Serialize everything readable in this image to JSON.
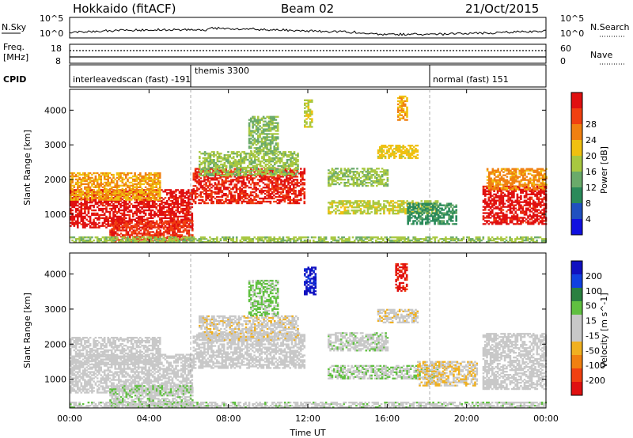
{
  "header": {
    "station": "Hokkaido (fitACF)",
    "beam": "Beam 02",
    "date": "21/Oct/2015"
  },
  "noise_panel": {
    "left_label": "N.Sky",
    "right_label": "N.Search",
    "left_ticks": [
      "10^5",
      "10^0"
    ],
    "right_ticks": [
      "10^5",
      "10^0"
    ]
  },
  "freq_panel": {
    "left_label_line1": "Freq.",
    "left_label_line2": "[MHz]",
    "left_ticks": [
      "18",
      "8"
    ],
    "right_label": "Nave",
    "right_ticks": [
      "60",
      "0"
    ]
  },
  "cpid": {
    "label": "CPID",
    "segments": [
      {
        "name": "interleavedscan (fast) -191",
        "start_hour": 0,
        "end_hour": 6
      },
      {
        "name": "themis 3300",
        "start_hour": 6,
        "end_hour": 18
      },
      {
        "name": "normal (fast) 151",
        "start_hour": 18,
        "end_hour": 24
      }
    ]
  },
  "colors": {
    "power_scale": [
      "#1010e0",
      "#2050c0",
      "#2a8a5a",
      "#6aaa6a",
      "#a8c840",
      "#f0c010",
      "#f08010",
      "#f04010",
      "#e01010"
    ],
    "velocity_scale": [
      "#1010c0",
      "#1040e0",
      "#2a8040",
      "#60c040",
      "#c8c8c8",
      "#c8c8c8",
      "#f0b020",
      "#f08010",
      "#f04010",
      "#e01010"
    ]
  },
  "chart_data": [
    {
      "type": "heatmap",
      "panel": "power",
      "ylabel": "Slant Range [km]",
      "xlabel": "Time UT",
      "x_ticks": [
        "00:00",
        "04:00",
        "08:00",
        "12:00",
        "16:00",
        "20:00",
        "00:00"
      ],
      "xlim_hours": [
        0,
        24
      ],
      "ylim_km": [
        180,
        4600
      ],
      "y_ticks": [
        1000,
        2000,
        3000,
        4000
      ],
      "colorbar": {
        "label": "Power [dB]",
        "ticks": [
          "4",
          "8",
          "12",
          "16",
          "20",
          "24",
          "28"
        ],
        "range": [
          0,
          30
        ]
      },
      "regions": [
        {
          "t0": 0,
          "t1": 6.2,
          "r0": 600,
          "r1": 1700,
          "value": 28
        },
        {
          "t0": 0,
          "t1": 4.5,
          "r0": 1400,
          "r1": 2200,
          "value": 20
        },
        {
          "t0": 2,
          "t1": 6.2,
          "r0": 200,
          "r1": 800,
          "value": 26
        },
        {
          "t0": 6.2,
          "t1": 11.8,
          "r0": 1300,
          "r1": 2300,
          "value": 27
        },
        {
          "t0": 6.5,
          "t1": 11.5,
          "r0": 2100,
          "r1": 2800,
          "value": 14
        },
        {
          "t0": 9,
          "t1": 10.5,
          "r0": 2800,
          "r1": 3800,
          "value": 13
        },
        {
          "t0": 11.8,
          "t1": 12.2,
          "r0": 3500,
          "r1": 4300,
          "value": 16
        },
        {
          "t0": 13,
          "t1": 18.5,
          "r0": 1000,
          "r1": 1400,
          "value": 16
        },
        {
          "t0": 13,
          "t1": 16.0,
          "r0": 1800,
          "r1": 2300,
          "value": 14
        },
        {
          "t0": 15.5,
          "t1": 17.5,
          "r0": 2600,
          "r1": 3000,
          "value": 18
        },
        {
          "t0": 16.5,
          "t1": 17.0,
          "r0": 3700,
          "r1": 4400,
          "value": 20
        },
        {
          "t0": 17.0,
          "t1": 19.5,
          "r0": 700,
          "r1": 1300,
          "value": 9
        },
        {
          "t0": 20.8,
          "t1": 24,
          "r0": 700,
          "r1": 1800,
          "value": 28
        },
        {
          "t0": 21.0,
          "t1": 24,
          "r0": 1700,
          "r1": 2300,
          "value": 21
        },
        {
          "t0": 0,
          "t1": 24,
          "r0": 180,
          "r1": 350,
          "value": 14
        }
      ]
    },
    {
      "type": "heatmap",
      "panel": "velocity",
      "ylabel": "Slant Range [km]",
      "xlabel": "Time UT",
      "x_ticks": [
        "00:00",
        "04:00",
        "08:00",
        "12:00",
        "16:00",
        "20:00",
        "00:00"
      ],
      "xlim_hours": [
        0,
        24
      ],
      "ylim_km": [
        180,
        4600
      ],
      "y_ticks": [
        1000,
        2000,
        3000,
        4000
      ],
      "colorbar": {
        "label": "Velocity [m s^-1]",
        "ticks": [
          "200",
          "100",
          "50",
          "15",
          "-15",
          "-50",
          "-100",
          "-200"
        ],
        "range": [
          -250,
          250
        ]
      },
      "regions": [
        {
          "t0": 0,
          "t1": 6.2,
          "r0": 600,
          "r1": 1700,
          "value": 5
        },
        {
          "t0": 0,
          "t1": 4.5,
          "r0": 1400,
          "r1": 2200,
          "value": -5
        },
        {
          "t0": 2,
          "t1": 6.2,
          "r0": 200,
          "r1": 800,
          "value": 40
        },
        {
          "t0": 6.2,
          "t1": 11.8,
          "r0": 1300,
          "r1": 2300,
          "value": 0
        },
        {
          "t0": 6.5,
          "t1": 11.5,
          "r0": 2100,
          "r1": 2800,
          "value": -30
        },
        {
          "t0": 9,
          "t1": 10.5,
          "r0": 2800,
          "r1": 3800,
          "value": 60
        },
        {
          "t0": 11.8,
          "t1": 12.4,
          "r0": 3400,
          "r1": 4200,
          "value": 220
        },
        {
          "t0": 13,
          "t1": 18.5,
          "r0": 1000,
          "r1": 1400,
          "value": 40
        },
        {
          "t0": 13,
          "t1": 16.0,
          "r0": 1800,
          "r1": 2300,
          "value": 30
        },
        {
          "t0": 15.5,
          "t1": 17.5,
          "r0": 2600,
          "r1": 3000,
          "value": -40
        },
        {
          "t0": 16.4,
          "t1": 17.0,
          "r0": 3500,
          "r1": 4300,
          "value": -220
        },
        {
          "t0": 17.5,
          "t1": 20.5,
          "r0": 800,
          "r1": 1500,
          "value": -45
        },
        {
          "t0": 20.8,
          "t1": 24,
          "r0": 700,
          "r1": 2300,
          "value": 0
        },
        {
          "t0": 0,
          "t1": 24,
          "r0": 180,
          "r1": 350,
          "value": 30
        }
      ]
    }
  ]
}
